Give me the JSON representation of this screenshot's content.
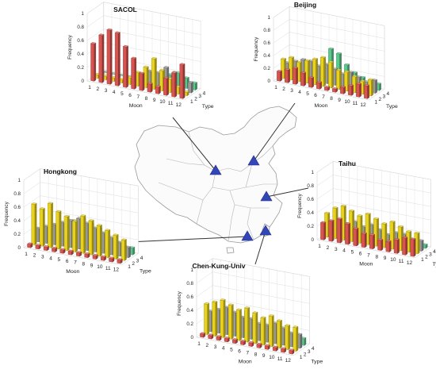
{
  "figure": {
    "station_marker_color": "#3346b8",
    "connector_color": "#333333",
    "map_border_color": "#9a9a9a"
  },
  "chart_data": [
    {
      "type": "bar3d",
      "title": "SACOL",
      "xlabel": "Moon",
      "ylabel": "Type",
      "zlabel": "Frequency",
      "x_ticks": [
        "1",
        "2",
        "3",
        "4",
        "5",
        "6",
        "7",
        "8",
        "9",
        "10",
        "11",
        "12"
      ],
      "y_ticks": [
        "1",
        "2",
        "3",
        "4"
      ],
      "z_ticks": [
        "0",
        "0.2",
        "0.4",
        "0.6",
        "0.8",
        "1"
      ],
      "zlim": [
        0,
        1
      ],
      "series": [
        {
          "type": "1",
          "color": "#d9534f",
          "values": [
            0.55,
            0.7,
            0.8,
            0.78,
            0.6,
            0.45,
            0.25,
            0.12,
            0.1,
            0.25,
            0.35,
            0.5
          ]
        },
        {
          "type": "2",
          "color": "#e8d21d",
          "values": [
            0.05,
            0.05,
            0.05,
            0.05,
            0.1,
            0.2,
            0.3,
            0.45,
            0.3,
            0.2,
            0.1,
            0.05
          ]
        },
        {
          "type": "3",
          "color": "#9b9b9b",
          "values": [
            0.05,
            0.05,
            0.05,
            0.05,
            0.1,
            0.1,
            0.2,
            0.2,
            0.3,
            0.25,
            0.2,
            0.15
          ]
        },
        {
          "type": "4",
          "color": "#5cc98c",
          "values": [
            0.0,
            0.0,
            0.0,
            0.0,
            0.0,
            0.0,
            0.05,
            0.1,
            0.15,
            0.2,
            0.15,
            0.1
          ]
        }
      ]
    },
    {
      "type": "bar3d",
      "title": "Beijing",
      "xlabel": "Moon",
      "ylabel": "Type",
      "zlabel": "Frequency",
      "x_ticks": [
        "1",
        "2",
        "3",
        "4",
        "5",
        "6",
        "7",
        "8",
        "9",
        "10",
        "11",
        "12"
      ],
      "y_ticks": [
        "1",
        "2",
        "3",
        "4"
      ],
      "z_ticks": [
        "0",
        "0.2",
        "0.4",
        "0.6",
        "0.8",
        "1"
      ],
      "zlim": [
        0,
        1
      ],
      "series": [
        {
          "type": "1",
          "color": "#d9534f",
          "values": [
            0.15,
            0.2,
            0.25,
            0.2,
            0.15,
            0.1,
            0.05,
            0.05,
            0.1,
            0.15,
            0.2,
            0.2
          ]
        },
        {
          "type": "2",
          "color": "#e8d21d",
          "values": [
            0.3,
            0.35,
            0.3,
            0.35,
            0.4,
            0.45,
            0.4,
            0.3,
            0.3,
            0.25,
            0.2,
            0.25
          ]
        },
        {
          "type": "3",
          "color": "#9b9b9b",
          "values": [
            0.2,
            0.25,
            0.3,
            0.3,
            0.25,
            0.3,
            0.25,
            0.2,
            0.25,
            0.2,
            0.15,
            0.2
          ]
        },
        {
          "type": "4",
          "color": "#5cc98c",
          "values": [
            0.1,
            0.15,
            0.15,
            0.2,
            0.3,
            0.5,
            0.45,
            0.3,
            0.2,
            0.15,
            0.1,
            0.1
          ]
        }
      ]
    },
    {
      "type": "bar3d",
      "title": "Hongkong",
      "xlabel": "Moon",
      "ylabel": "Type",
      "zlabel": "Frequency",
      "x_ticks": [
        "1",
        "2",
        "3",
        "4",
        "5",
        "6",
        "7",
        "8",
        "9",
        "10",
        "11",
        "12"
      ],
      "y_ticks": [
        "1",
        "2",
        "3",
        "4"
      ],
      "z_ticks": [
        "0",
        "0.2",
        "0.4",
        "0.6",
        "0.8",
        "1"
      ],
      "zlim": [
        0,
        1
      ],
      "series": [
        {
          "type": "1",
          "color": "#d9534f",
          "values": [
            0.05,
            0.05,
            0.05,
            0.05,
            0.05,
            0.05,
            0.05,
            0.05,
            0.05,
            0.05,
            0.05,
            0.05
          ]
        },
        {
          "type": "2",
          "color": "#e8d21d",
          "values": [
            0.6,
            0.55,
            0.65,
            0.55,
            0.5,
            0.45,
            0.55,
            0.5,
            0.45,
            0.4,
            0.35,
            0.3
          ]
        },
        {
          "type": "3",
          "color": "#9b9b9b",
          "values": [
            0.2,
            0.25,
            0.3,
            0.35,
            0.4,
            0.45,
            0.4,
            0.35,
            0.3,
            0.25,
            0.2,
            0.15
          ]
        },
        {
          "type": "4",
          "color": "#5cc98c",
          "values": [
            0.1,
            0.15,
            0.2,
            0.25,
            0.35,
            0.4,
            0.35,
            0.3,
            0.2,
            0.15,
            0.1,
            0.1
          ]
        }
      ]
    },
    {
      "type": "bar3d",
      "title": "Taihu",
      "xlabel": "Moon",
      "ylabel": "Type",
      "zlabel": "Frequency",
      "x_ticks": [
        "1",
        "2",
        "3",
        "4",
        "5",
        "6",
        "7",
        "8",
        "9",
        "10",
        "11",
        "12"
      ],
      "y_ticks": [
        "1",
        "2",
        "3",
        "4"
      ],
      "z_ticks": [
        "0",
        "0.2",
        "0.4",
        "0.6",
        "0.8",
        "1"
      ],
      "zlim": [
        0,
        1
      ],
      "series": [
        {
          "type": "1",
          "color": "#d9534f",
          "values": [
            0.25,
            0.3,
            0.35,
            0.3,
            0.25,
            0.2,
            0.2,
            0.15,
            0.15,
            0.2,
            0.25,
            0.25
          ]
        },
        {
          "type": "2",
          "color": "#e8d21d",
          "values": [
            0.35,
            0.45,
            0.5,
            0.45,
            0.4,
            0.45,
            0.4,
            0.35,
            0.4,
            0.35,
            0.3,
            0.3
          ]
        },
        {
          "type": "3",
          "color": "#9b9b9b",
          "values": [
            0.15,
            0.2,
            0.2,
            0.25,
            0.2,
            0.25,
            0.2,
            0.15,
            0.2,
            0.2,
            0.15,
            0.15
          ]
        },
        {
          "type": "4",
          "color": "#5cc98c",
          "values": [
            0.05,
            0.05,
            0.1,
            0.1,
            0.1,
            0.15,
            0.1,
            0.1,
            0.1,
            0.1,
            0.05,
            0.05
          ]
        }
      ]
    },
    {
      "type": "bar3d",
      "title": "Chen-Kung-Univ",
      "xlabel": "Moon",
      "ylabel": "Type",
      "zlabel": "Frequency",
      "x_ticks": [
        "1",
        "2",
        "3",
        "4",
        "5",
        "6",
        "7",
        "8",
        "9",
        "10",
        "11",
        "12"
      ],
      "y_ticks": [
        "1",
        "2",
        "3",
        "4"
      ],
      "z_ticks": [
        "0",
        "0.2",
        "0.4",
        "0.6",
        "0.8",
        "1"
      ],
      "zlim": [
        0,
        1
      ],
      "series": [
        {
          "type": "1",
          "color": "#d9534f",
          "values": [
            0.05,
            0.05,
            0.05,
            0.05,
            0.05,
            0.05,
            0.05,
            0.05,
            0.05,
            0.05,
            0.05,
            0.05
          ]
        },
        {
          "type": "2",
          "color": "#e8d21d",
          "values": [
            0.45,
            0.5,
            0.55,
            0.5,
            0.45,
            0.5,
            0.45,
            0.4,
            0.45,
            0.4,
            0.35,
            0.35
          ]
        },
        {
          "type": "3",
          "color": "#9b9b9b",
          "values": [
            0.3,
            0.35,
            0.4,
            0.35,
            0.3,
            0.3,
            0.25,
            0.25,
            0.3,
            0.25,
            0.2,
            0.2
          ]
        },
        {
          "type": "4",
          "color": "#5cc98c",
          "values": [
            0.15,
            0.2,
            0.25,
            0.3,
            0.35,
            0.3,
            0.25,
            0.2,
            0.2,
            0.15,
            0.15,
            0.1
          ]
        }
      ]
    }
  ]
}
